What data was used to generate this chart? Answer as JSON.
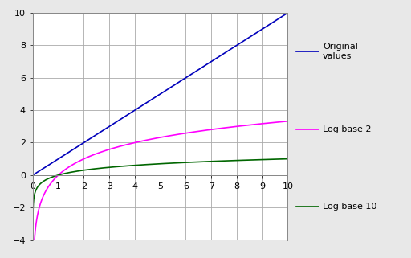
{
  "title": "",
  "xlim": [
    0,
    10
  ],
  "ylim": [
    -4,
    10
  ],
  "xticks": [
    0,
    1,
    2,
    3,
    4,
    5,
    6,
    7,
    8,
    9,
    10
  ],
  "yticks": [
    -4,
    -2,
    0,
    2,
    4,
    6,
    8,
    10
  ],
  "line_original_color": "#0000bb",
  "line_log2_color": "#ff00ff",
  "line_log10_color": "#006600",
  "legend_original": "Original\nvalues",
  "legend_log2": "Log base 2",
  "legend_log10": "Log base 10",
  "background_color": "#e8e8e8",
  "plot_background": "#ffffff",
  "grid_color": "#aaaaaa",
  "border_color": "#888888",
  "font_size": 8,
  "line_width": 1.2
}
